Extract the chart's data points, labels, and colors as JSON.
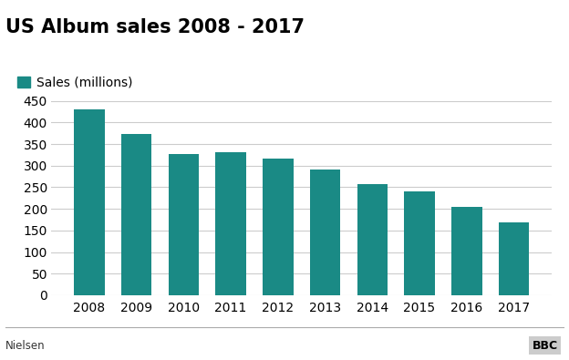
{
  "title": "US Album sales 2008 - 2017",
  "legend_label": "Sales (millions)",
  "years": [
    "2008",
    "2009",
    "2010",
    "2011",
    "2012",
    "2013",
    "2014",
    "2015",
    "2016",
    "2017"
  ],
  "values": [
    430,
    373,
    326,
    331,
    316,
    291,
    258,
    241,
    205,
    169
  ],
  "bar_color": "#1a8a85",
  "ylim": [
    0,
    450
  ],
  "yticks": [
    0,
    50,
    100,
    150,
    200,
    250,
    300,
    350,
    400,
    450
  ],
  "title_fontsize": 15,
  "tick_fontsize": 10,
  "legend_fontsize": 10,
  "background_color": "#ffffff",
  "grid_color": "#cccccc",
  "footer_left": "Nielsen",
  "footer_right": "BBC",
  "bar_width": 0.65
}
